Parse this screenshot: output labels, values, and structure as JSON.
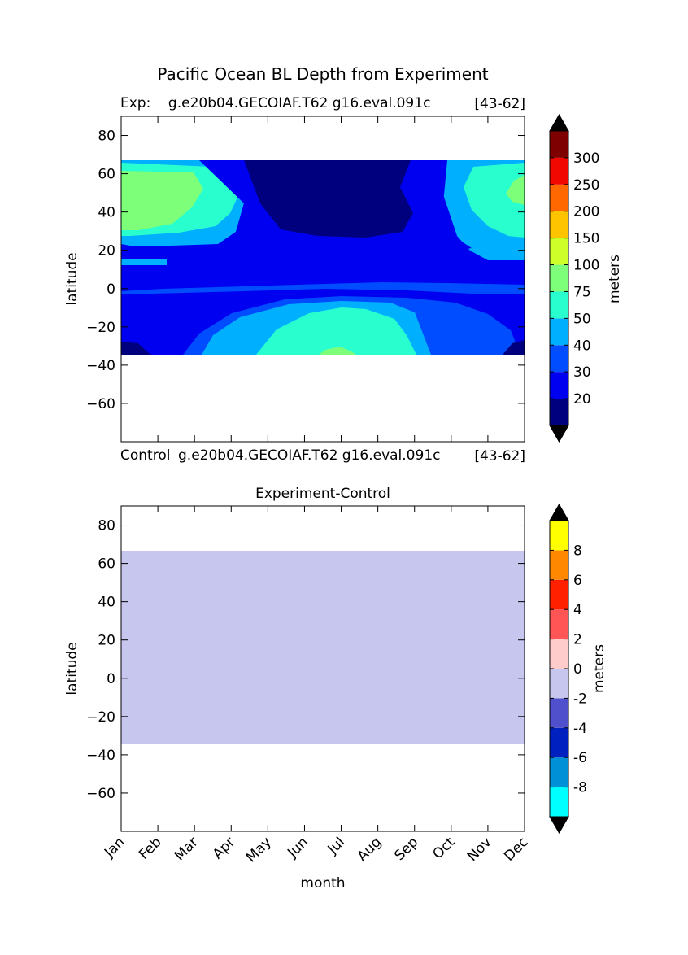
{
  "figure": {
    "suptitle": "Pacific Ocean BL Depth from Experiment"
  },
  "chart_data": [
    {
      "type": "heatmap",
      "title_left": "Exp:    g.e20b04.GECOIAF.T62 g16.eval.091c",
      "title_right": "[43-62]",
      "xlabel": "",
      "ylabel": "latitude",
      "ylim": [
        -80,
        90
      ],
      "yticks": [
        "80",
        "60",
        "40",
        "20",
        "0",
        "−20",
        "−40",
        "−60"
      ],
      "data_lat_range": [
        -34,
        67
      ],
      "bottom_label_left": "Control",
      "bottom_label_mid": "g.e20b04.GECOIAF.T62 g16.eval.091c",
      "bottom_label_right": "[43-62]",
      "colorbar": {
        "label": "meters",
        "levels": [
          "20",
          "30",
          "40",
          "50",
          "75",
          "100",
          "150",
          "200",
          "250",
          "300"
        ],
        "colors": [
          "#00007f",
          "#0000f1",
          "#004cff",
          "#00b0ff",
          "#29ffce",
          "#7dff7a",
          "#ceff29",
          "#ffc400",
          "#ff6800",
          "#f10800",
          "#7f0000"
        ],
        "extend_colors": [
          "#000000",
          "#000000"
        ]
      },
      "field_colors": {
        "c20": "#00007f",
        "c30": "#0000f1",
        "c40": "#004cff",
        "c50": "#00b0ff",
        "c75": "#29ffce",
        "c100": "#7dff7a"
      }
    },
    {
      "type": "heatmap",
      "title": "Experiment-Control",
      "xlabel": "month",
      "ylabel": "latitude",
      "ylim": [
        -80,
        90
      ],
      "yticks": [
        "80",
        "60",
        "40",
        "20",
        "0",
        "−20",
        "−40",
        "−60"
      ],
      "xticks": [
        "Jan",
        "Feb",
        "Mar",
        "Apr",
        "May",
        "Jun",
        "Jul",
        "Aug",
        "Sep",
        "Oct",
        "Nov",
        "Dec"
      ],
      "data_lat_range": [
        -34,
        67
      ],
      "uniform_value_range": [
        -2,
        0
      ],
      "uniform_color": "#c6c6ee",
      "colorbar": {
        "label": "meters",
        "levels": [
          "-8",
          "-6",
          "-4",
          "-2",
          "0",
          "2",
          "4",
          "6",
          "8"
        ],
        "colors": [
          "#00ffff",
          "#0090d8",
          "#0020c0",
          "#5050cc",
          "#c6c6ee",
          "#ffcccc",
          "#ff5555",
          "#ff2000",
          "#ff8800",
          "#ffff00"
        ],
        "extend_colors": [
          "#000000",
          "#000000"
        ]
      }
    }
  ]
}
